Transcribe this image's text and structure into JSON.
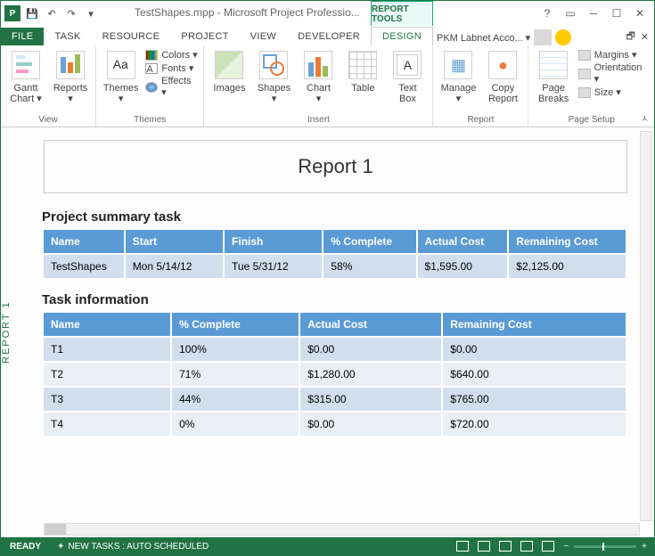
{
  "title": "TestShapes.mpp - Microsoft Project Professio...",
  "tool_tab": "REPORT TOOLS",
  "tabs": {
    "file": "FILE",
    "task": "TASK",
    "resource": "RESOURCE",
    "project": "PROJECT",
    "view": "VIEW",
    "developer": "DEVELOPER",
    "design": "DESIGN"
  },
  "account": "PKM Labnet Acco... ▾",
  "ribbon": {
    "view": {
      "gantt": "Gantt\nChart ▾",
      "reports": "Reports\n▾",
      "label": "View"
    },
    "themes": {
      "themes": "Themes\n▾",
      "colors": "Colors ▾",
      "fonts": "Fonts ▾",
      "effects": "Effects ▾",
      "label": "Themes"
    },
    "insert": {
      "images": "Images",
      "shapes": "Shapes\n▾",
      "chart": "Chart\n▾",
      "table": "Table",
      "textbox": "Text\nBox",
      "label": "Insert"
    },
    "report": {
      "manage": "Manage\n▾",
      "copy": "Copy\nReport",
      "label": "Report"
    },
    "page_setup": {
      "breaks": "Page\nBreaks",
      "margins": "Margins ▾",
      "orientation": "Orientation ▾",
      "size": "Size ▾",
      "label": "Page Setup"
    }
  },
  "side_label": "REPORT 1",
  "report_title": "Report 1",
  "summary": {
    "heading": "Project summary task",
    "cols": [
      "Name",
      "Start",
      "Finish",
      "% Complete",
      "Actual Cost",
      "Remaining Cost"
    ],
    "row": [
      "TestShapes",
      "Mon 5/14/12",
      "Tue 5/31/12",
      "58%",
      "$1,595.00",
      "$2,125.00"
    ]
  },
  "tasks": {
    "heading": "Task information",
    "cols": [
      "Name",
      "% Complete",
      "Actual Cost",
      "Remaining Cost"
    ],
    "rows": [
      [
        "T1",
        "100%",
        "$0.00",
        "$0.00"
      ],
      [
        "T2",
        "71%",
        "$1,280.00",
        "$640.00"
      ],
      [
        "T3",
        "44%",
        "$315.00",
        "$765.00"
      ],
      [
        "T4",
        "0%",
        "$0.00",
        "$720.00"
      ]
    ]
  },
  "status": {
    "ready": "READY",
    "newtasks": "NEW TASKS : AUTO SCHEDULED"
  }
}
